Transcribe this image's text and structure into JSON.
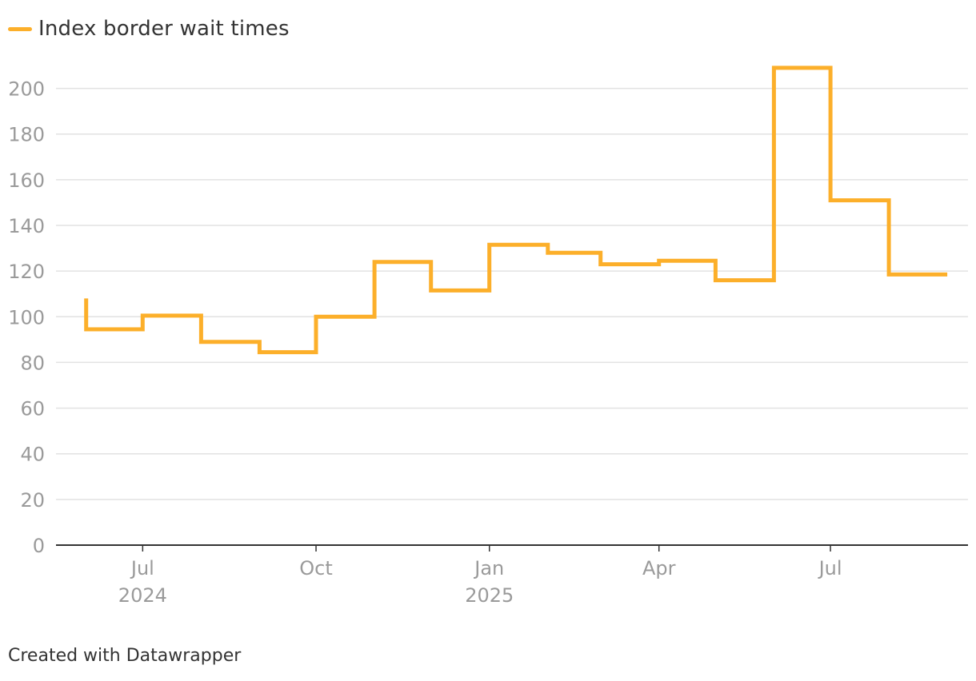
{
  "chart_data": {
    "type": "line",
    "title": "",
    "legend": [
      {
        "label": "Index border wait times",
        "color": "#fcaf2a"
      }
    ],
    "line_color": "#fcaf2a",
    "ylim": [
      0,
      210
    ],
    "yticks": [
      0,
      20,
      40,
      60,
      80,
      100,
      120,
      140,
      160,
      180,
      200
    ],
    "xlim": [
      "2024-05-16",
      "2025-09-12"
    ],
    "xticks": [
      {
        "date": "2024-07-01",
        "line1": "Jul",
        "line2": "2024"
      },
      {
        "date": "2024-10-01",
        "line1": "Oct",
        "line2": ""
      },
      {
        "date": "2025-01-01",
        "line1": "Jan",
        "line2": "2025"
      },
      {
        "date": "2025-04-01",
        "line1": "Apr",
        "line2": ""
      },
      {
        "date": "2025-07-01",
        "line1": "Jul",
        "line2": ""
      }
    ],
    "series": [
      {
        "name": "Index border wait times",
        "points": [
          {
            "x": "2024-06-01",
            "y": 108
          },
          {
            "x": "2024-06-01",
            "y": 94.5
          },
          {
            "x": "2024-07-01",
            "y": 94.5
          },
          {
            "x": "2024-07-01",
            "y": 100.5
          },
          {
            "x": "2024-08-01",
            "y": 100.5
          },
          {
            "x": "2024-08-01",
            "y": 89
          },
          {
            "x": "2024-09-01",
            "y": 89
          },
          {
            "x": "2024-09-01",
            "y": 84.5
          },
          {
            "x": "2024-10-01",
            "y": 84.5
          },
          {
            "x": "2024-10-01",
            "y": 100
          },
          {
            "x": "2024-11-01",
            "y": 100
          },
          {
            "x": "2024-11-01",
            "y": 124
          },
          {
            "x": "2024-12-01",
            "y": 124
          },
          {
            "x": "2024-12-01",
            "y": 111.5
          },
          {
            "x": "2025-01-01",
            "y": 111.5
          },
          {
            "x": "2025-01-01",
            "y": 131.5
          },
          {
            "x": "2025-02-01",
            "y": 131.5
          },
          {
            "x": "2025-02-01",
            "y": 128
          },
          {
            "x": "2025-03-01",
            "y": 128
          },
          {
            "x": "2025-03-01",
            "y": 123
          },
          {
            "x": "2025-04-01",
            "y": 123
          },
          {
            "x": "2025-04-01",
            "y": 124.5
          },
          {
            "x": "2025-05-01",
            "y": 124.5
          },
          {
            "x": "2025-05-01",
            "y": 116
          },
          {
            "x": "2025-06-01",
            "y": 116
          },
          {
            "x": "2025-06-01",
            "y": 209
          },
          {
            "x": "2025-07-01",
            "y": 209
          },
          {
            "x": "2025-07-01",
            "y": 151
          },
          {
            "x": "2025-08-01",
            "y": 151
          },
          {
            "x": "2025-08-01",
            "y": 118.5
          },
          {
            "x": "2025-09-01",
            "y": 118.5
          }
        ]
      }
    ]
  },
  "footer": {
    "credit": "Created with Datawrapper"
  }
}
